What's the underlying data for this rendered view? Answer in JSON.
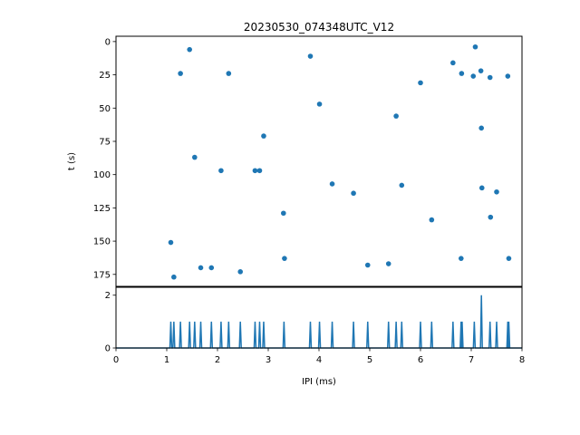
{
  "chart_data": [
    {
      "type": "scatter",
      "title": "20230530_074348UTC_V12",
      "xlabel": "",
      "ylabel": "t (s)",
      "xlim": [
        0,
        8
      ],
      "ylim": [
        184,
        -4
      ],
      "y_inverted": true,
      "yticks": [
        0,
        25,
        50,
        75,
        100,
        125,
        150,
        175
      ],
      "color": "#1f77b4",
      "points": [
        {
          "x": 1.08,
          "y": 151
        },
        {
          "x": 1.14,
          "y": 177
        },
        {
          "x": 1.27,
          "y": 24
        },
        {
          "x": 1.45,
          "y": 6
        },
        {
          "x": 1.55,
          "y": 87
        },
        {
          "x": 1.67,
          "y": 170
        },
        {
          "x": 1.88,
          "y": 170
        },
        {
          "x": 2.07,
          "y": 97
        },
        {
          "x": 2.22,
          "y": 24
        },
        {
          "x": 2.45,
          "y": 173
        },
        {
          "x": 2.74,
          "y": 97
        },
        {
          "x": 2.83,
          "y": 97
        },
        {
          "x": 2.91,
          "y": 71
        },
        {
          "x": 3.3,
          "y": 129
        },
        {
          "x": 3.32,
          "y": 163
        },
        {
          "x": 3.83,
          "y": 11
        },
        {
          "x": 4.01,
          "y": 47
        },
        {
          "x": 4.26,
          "y": 107
        },
        {
          "x": 4.68,
          "y": 114
        },
        {
          "x": 4.96,
          "y": 168
        },
        {
          "x": 5.37,
          "y": 167
        },
        {
          "x": 5.52,
          "y": 56
        },
        {
          "x": 5.63,
          "y": 108
        },
        {
          "x": 6.0,
          "y": 31
        },
        {
          "x": 6.22,
          "y": 134
        },
        {
          "x": 6.64,
          "y": 16
        },
        {
          "x": 6.8,
          "y": 163
        },
        {
          "x": 6.81,
          "y": 24
        },
        {
          "x": 7.04,
          "y": 26
        },
        {
          "x": 7.08,
          "y": 4
        },
        {
          "x": 7.19,
          "y": 22
        },
        {
          "x": 7.2,
          "y": 65
        },
        {
          "x": 7.21,
          "y": 110
        },
        {
          "x": 7.37,
          "y": 27
        },
        {
          "x": 7.38,
          "y": 132
        },
        {
          "x": 7.5,
          "y": 113
        },
        {
          "x": 7.72,
          "y": 26
        },
        {
          "x": 7.74,
          "y": 163
        }
      ]
    },
    {
      "type": "line",
      "title": "",
      "xlabel": "IPI (ms)",
      "ylabel": "",
      "xlim": [
        0,
        8
      ],
      "ylim": [
        0,
        2.3
      ],
      "xticks": [
        0,
        1,
        2,
        3,
        4,
        5,
        6,
        7,
        8
      ],
      "yticks": [
        0,
        2
      ],
      "color": "#1f77b4",
      "spikes": [
        {
          "x": 1.08,
          "y": 1
        },
        {
          "x": 1.14,
          "y": 1
        },
        {
          "x": 1.27,
          "y": 1
        },
        {
          "x": 1.45,
          "y": 1
        },
        {
          "x": 1.55,
          "y": 1
        },
        {
          "x": 1.67,
          "y": 1
        },
        {
          "x": 1.88,
          "y": 1
        },
        {
          "x": 2.07,
          "y": 1
        },
        {
          "x": 2.22,
          "y": 1
        },
        {
          "x": 2.45,
          "y": 1
        },
        {
          "x": 2.74,
          "y": 1
        },
        {
          "x": 2.83,
          "y": 1
        },
        {
          "x": 2.91,
          "y": 1
        },
        {
          "x": 3.31,
          "y": 1
        },
        {
          "x": 3.83,
          "y": 1
        },
        {
          "x": 4.01,
          "y": 1
        },
        {
          "x": 4.26,
          "y": 1
        },
        {
          "x": 4.68,
          "y": 1
        },
        {
          "x": 4.96,
          "y": 1
        },
        {
          "x": 5.37,
          "y": 1
        },
        {
          "x": 5.52,
          "y": 1
        },
        {
          "x": 5.63,
          "y": 1
        },
        {
          "x": 6.0,
          "y": 1
        },
        {
          "x": 6.22,
          "y": 1
        },
        {
          "x": 6.64,
          "y": 1
        },
        {
          "x": 6.8,
          "y": 1
        },
        {
          "x": 6.82,
          "y": 1
        },
        {
          "x": 7.06,
          "y": 1
        },
        {
          "x": 7.2,
          "y": 2
        },
        {
          "x": 7.37,
          "y": 1
        },
        {
          "x": 7.5,
          "y": 1
        },
        {
          "x": 7.72,
          "y": 1
        },
        {
          "x": 7.74,
          "y": 1
        }
      ]
    }
  ]
}
